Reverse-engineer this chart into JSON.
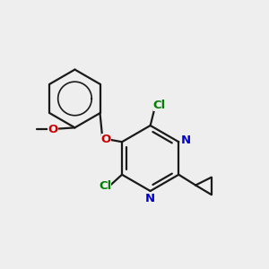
{
  "bg_color": "#eeeeee",
  "bond_color": "#1a1a1a",
  "bond_width": 1.6,
  "cl_color": "#008000",
  "n_color": "#0000cc",
  "o_color": "#cc0000",
  "figsize": [
    3.0,
    3.0
  ],
  "dpi": 100,
  "xlim": [
    -0.5,
    4.2
  ],
  "ylim": [
    -1.8,
    3.2
  ]
}
